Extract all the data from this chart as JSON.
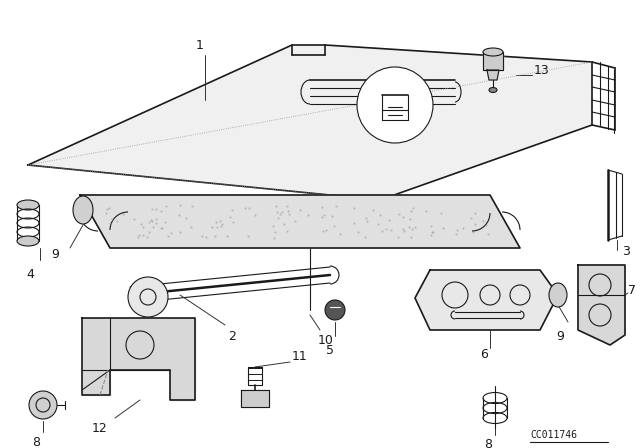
{
  "bg_color": "#ffffff",
  "line_color": "#1a1a1a",
  "diagram_code_text": "CC011746",
  "figsize": [
    6.4,
    4.48
  ],
  "dpi": 100
}
